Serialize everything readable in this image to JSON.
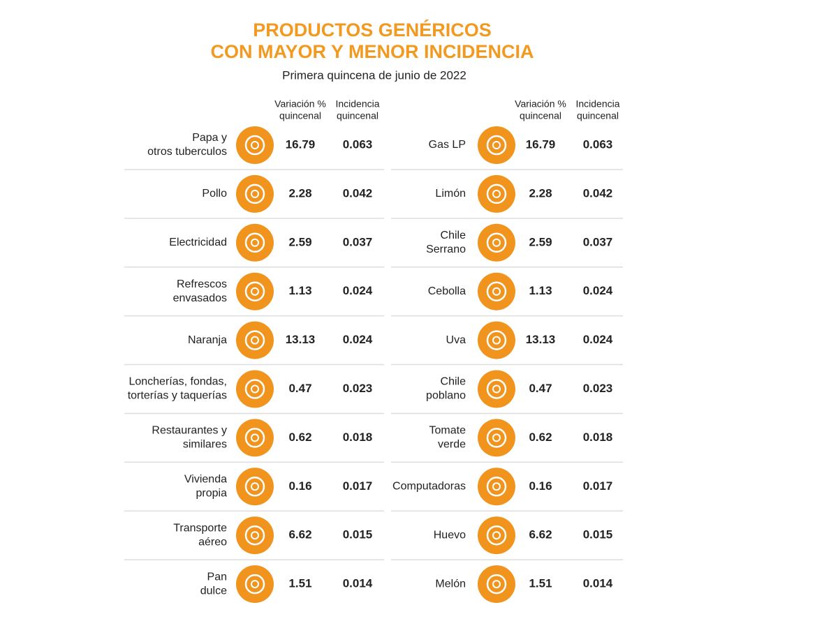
{
  "header": {
    "title": [
      "PRODUCTOS GENÉRICOS",
      "CON MAYOR Y MENOR INCIDENCIA"
    ],
    "subtitle": "Primera quincena de junio de 2022"
  },
  "tables": [
    {
      "columns": [
        [
          "Variación %",
          "quincenal"
        ],
        [
          "Incidencia",
          "quincenal"
        ]
      ],
      "rows": [
        {
          "label": [
            "Papa y",
            "otros tuberculos"
          ],
          "variation": "16.79",
          "incidence": "0.063"
        },
        {
          "label": [
            "Pollo"
          ],
          "variation": "2.28",
          "incidence": "0.042"
        },
        {
          "label": [
            "Electricidad"
          ],
          "variation": "2.59",
          "incidence": "0.037"
        },
        {
          "label": [
            "Refrescos",
            "envasados"
          ],
          "variation": "1.13",
          "incidence": "0.024"
        },
        {
          "label": [
            "Naranja"
          ],
          "variation": "13.13",
          "incidence": "0.024"
        },
        {
          "label": [
            "Loncherías, fondas,",
            "torterías y taquerías"
          ],
          "variation": "0.47",
          "incidence": "0.023"
        },
        {
          "label": [
            "Restaurantes y",
            "similares"
          ],
          "variation": "0.62",
          "incidence": "0.018"
        },
        {
          "label": [
            "Vivienda",
            "propia"
          ],
          "variation": "0.16",
          "incidence": "0.017"
        },
        {
          "label": [
            "Transporte",
            "aéreo"
          ],
          "variation": "6.62",
          "incidence": "0.015"
        },
        {
          "label": [
            "Pan",
            "dulce"
          ],
          "variation": "1.51",
          "incidence": "0.014"
        }
      ]
    },
    {
      "columns": [
        [
          "Variación %",
          "quincenal"
        ],
        [
          "Incidencia",
          "quincenal"
        ]
      ],
      "rows": [
        {
          "label": [
            "Gas LP"
          ],
          "variation": "16.79",
          "incidence": "0.063"
        },
        {
          "label": [
            "Limón"
          ],
          "variation": "2.28",
          "incidence": "0.042"
        },
        {
          "label": [
            "Chile",
            "Serrano"
          ],
          "variation": "2.59",
          "incidence": "0.037"
        },
        {
          "label": [
            "Cebolla"
          ],
          "variation": "1.13",
          "incidence": "0.024"
        },
        {
          "label": [
            "Uva"
          ],
          "variation": "13.13",
          "incidence": "0.024"
        },
        {
          "label": [
            "Chile",
            "poblano"
          ],
          "variation": "0.47",
          "incidence": "0.023"
        },
        {
          "label": [
            "Tomate",
            "verde"
          ],
          "variation": "0.62",
          "incidence": "0.018"
        },
        {
          "label": [
            "Computadoras"
          ],
          "variation": "0.16",
          "incidence": "0.017"
        },
        {
          "label": [
            "Huevo"
          ],
          "variation": "6.62",
          "incidence": "0.015"
        },
        {
          "label": [
            "Melón"
          ],
          "variation": "1.51",
          "incidence": "0.014"
        }
      ]
    }
  ]
}
